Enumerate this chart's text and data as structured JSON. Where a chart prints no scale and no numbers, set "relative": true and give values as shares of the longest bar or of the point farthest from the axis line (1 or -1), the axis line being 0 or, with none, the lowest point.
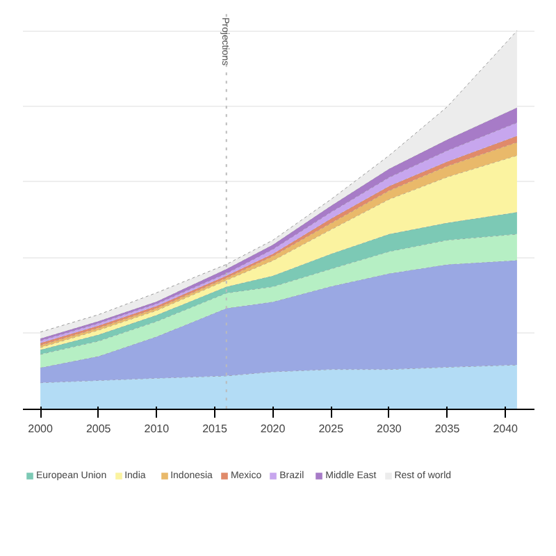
{
  "chart_data": {
    "type": "area",
    "stacked": true,
    "relative": true,
    "x": [
      2000,
      2005,
      2010,
      2016,
      2020,
      2025,
      2030,
      2035,
      2041
    ],
    "xlim": [
      1998.5,
      2042.5
    ],
    "xticks": [
      2000,
      2005,
      2010,
      2015,
      2020,
      2025,
      2030,
      2035,
      2040
    ],
    "grid": "y",
    "legend": "bottom",
    "ref_lines": [
      {
        "axis": "x",
        "value": 2016,
        "label": "Projections",
        "line_style": "dotted",
        "color": "#bbbbbb"
      }
    ],
    "series": [
      {
        "color": "#b3dcf5",
        "values": [
          0.069,
          0.075,
          0.081,
          0.087,
          0.098,
          0.104,
          0.104,
          0.11,
          0.116
        ]
      },
      {
        "color": "#9aa8e3",
        "values": [
          0.04,
          0.064,
          0.11,
          0.179,
          0.185,
          0.22,
          0.254,
          0.272,
          0.277
        ]
      },
      {
        "color": "#b6efc4",
        "values": [
          0.035,
          0.04,
          0.04,
          0.04,
          0.04,
          0.046,
          0.058,
          0.064,
          0.069
        ]
      },
      {
        "name": "European Union",
        "color": "#7cc9b5",
        "values": [
          0.012,
          0.017,
          0.017,
          0.017,
          0.029,
          0.04,
          0.046,
          0.046,
          0.058
        ]
      },
      {
        "name": "India",
        "color": "#fbf3a0",
        "values": [
          0.006,
          0.012,
          0.012,
          0.017,
          0.04,
          0.064,
          0.092,
          0.121,
          0.15
        ]
      },
      {
        "name": "Indonesia",
        "color": "#e9b96a",
        "values": [
          0.006,
          0.006,
          0.006,
          0.006,
          0.012,
          0.017,
          0.023,
          0.029,
          0.035
        ]
      },
      {
        "name": "Mexico",
        "color": "#e08a6a",
        "values": [
          0.006,
          0.006,
          0.006,
          0.006,
          0.006,
          0.012,
          0.012,
          0.012,
          0.017
        ]
      },
      {
        "name": "Brazil",
        "color": "#c7a6ee",
        "values": [
          0.006,
          0.006,
          0.006,
          0.006,
          0.012,
          0.017,
          0.023,
          0.029,
          0.035
        ]
      },
      {
        "name": "Middle East",
        "color": "#a77bc7",
        "values": [
          0.006,
          0.006,
          0.006,
          0.012,
          0.012,
          0.017,
          0.023,
          0.029,
          0.04
        ]
      },
      {
        "name": "Rest of world",
        "color": "#ececec",
        "values": [
          0.017,
          0.017,
          0.023,
          0.012,
          0.012,
          0.017,
          0.035,
          0.087,
          0.203
        ]
      }
    ]
  }
}
